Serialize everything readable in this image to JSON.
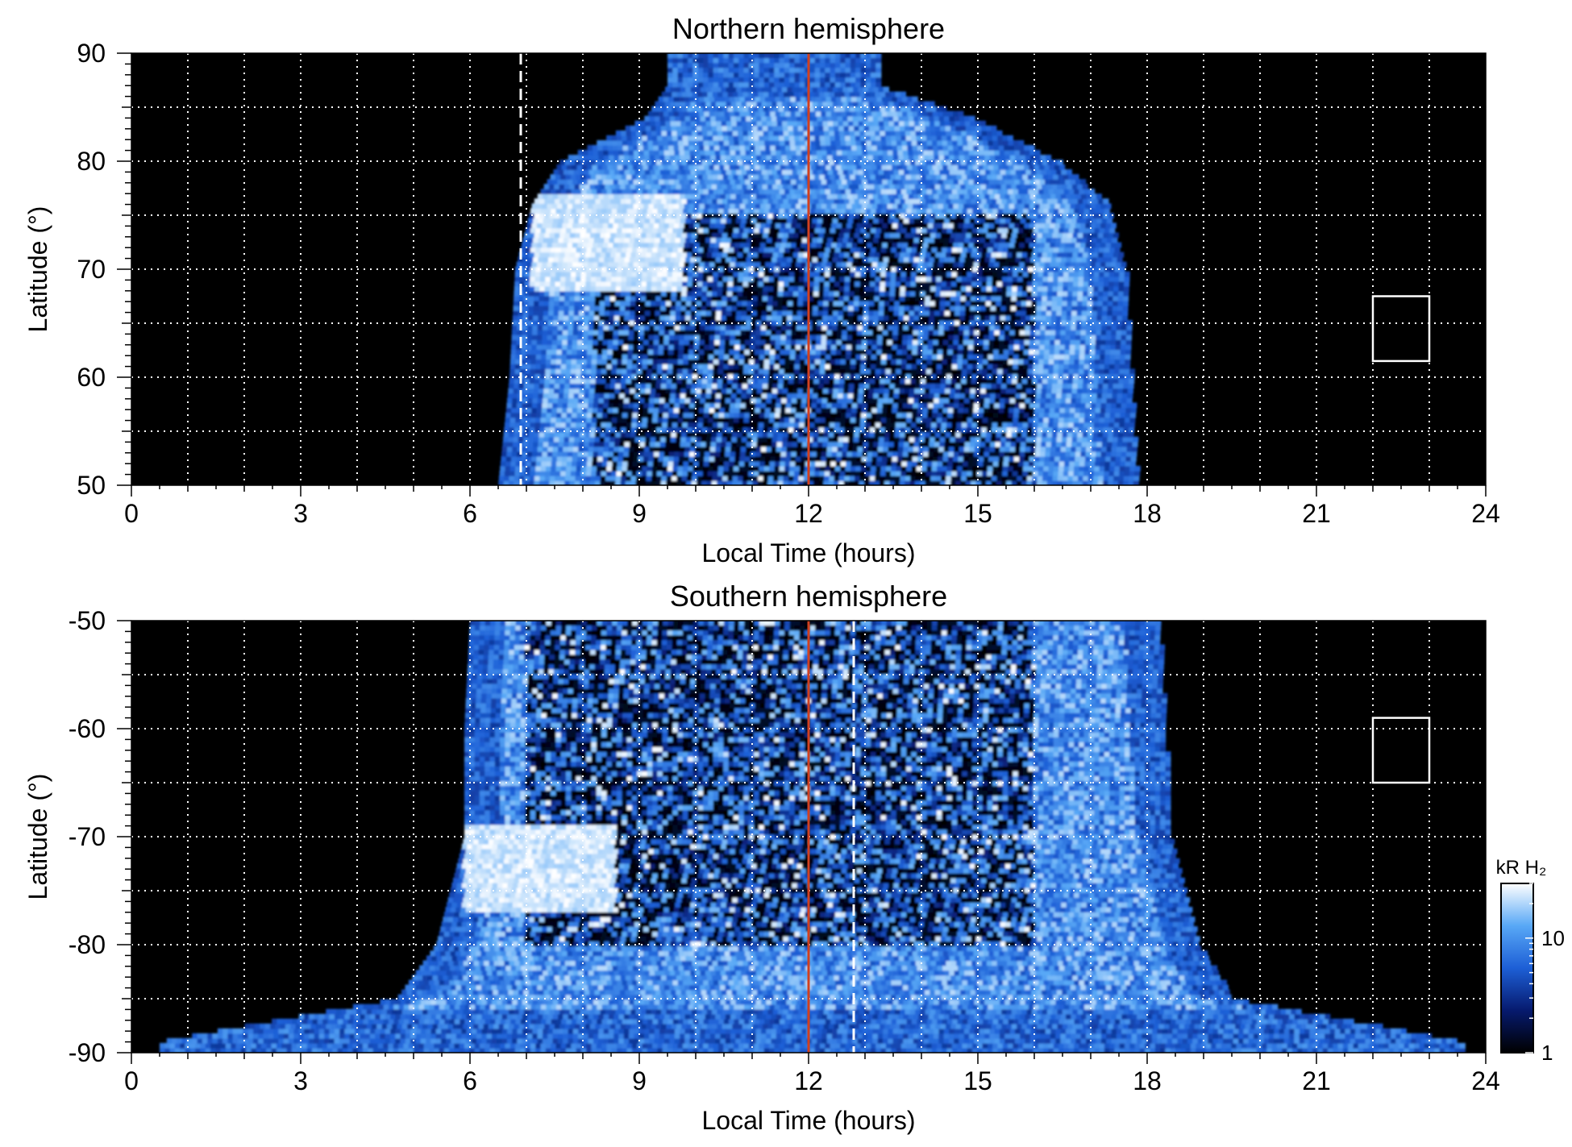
{
  "chart_data": [
    {
      "type": "heatmap",
      "title": "Northern hemisphere",
      "xlabel": "Local Time (hours)",
      "ylabel": "Latitude (°)",
      "xlim": [
        0,
        24
      ],
      "ylim": [
        50,
        90
      ],
      "x_ticks": [
        "0",
        "3",
        "6",
        "9",
        "12",
        "15",
        "18",
        "21",
        "24"
      ],
      "y_ticks": [
        "50",
        "60",
        "70",
        "80",
        "90"
      ],
      "grid": true,
      "grid_x_step_hours": 1,
      "grid_y_step_degrees": 5,
      "coverage": {
        "lt_start_at_lat": [
          [
            50,
            6.5
          ],
          [
            60,
            6.7
          ],
          [
            70,
            6.8
          ],
          [
            76,
            7.1
          ],
          [
            80,
            7.6
          ],
          [
            84,
            9.1
          ],
          [
            87,
            9.5
          ]
        ],
        "lt_end_at_lat": [
          [
            50,
            17.8
          ],
          [
            60,
            17.7
          ],
          [
            70,
            17.6
          ],
          [
            76,
            17.3
          ],
          [
            80,
            16.4
          ],
          [
            84,
            14.9
          ],
          [
            87,
            13.2
          ]
        ]
      },
      "bright_region": {
        "lt": [
          7.1,
          9.8
        ],
        "lat": [
          68,
          77
        ]
      },
      "dark_core": {
        "lt": [
          8.2,
          16.0
        ],
        "lat": [
          50,
          75
        ]
      },
      "reference_lines": [
        {
          "style": "dashed",
          "color": "#ffffff",
          "local_time": 6.9
        },
        {
          "style": "solid",
          "color": "#d04020",
          "local_time": 12.0
        }
      ],
      "reference_box": {
        "lt": [
          22,
          23
        ],
        "lat": [
          61.5,
          67.5
        ]
      }
    },
    {
      "type": "heatmap",
      "title": "Southern hemisphere",
      "xlabel": "Local Time (hours)",
      "ylabel": "Latitude (°)",
      "xlim": [
        0,
        24
      ],
      "ylim": [
        -90,
        -50
      ],
      "x_ticks": [
        "0",
        "3",
        "6",
        "9",
        "12",
        "15",
        "18",
        "21",
        "24"
      ],
      "y_ticks": [
        "-50",
        "-60",
        "-70",
        "-80",
        "-90"
      ],
      "grid": true,
      "grid_x_step_hours": 1,
      "grid_y_step_degrees": 5,
      "coverage": {
        "lt_start_at_lat": [
          [
            -50,
            6.0
          ],
          [
            -60,
            5.9
          ],
          [
            -70,
            5.9
          ],
          [
            -80,
            5.4
          ],
          [
            -85,
            4.7
          ],
          [
            -88,
            1.5
          ],
          [
            -89,
            0.5
          ]
        ],
        "lt_end_at_lat": [
          [
            -50,
            18.2
          ],
          [
            -60,
            18.3
          ],
          [
            -70,
            18.4
          ],
          [
            -80,
            18.9
          ],
          [
            -85,
            19.5
          ],
          [
            -88,
            22.6
          ],
          [
            -89,
            23.6
          ]
        ]
      },
      "bright_region": {
        "lt": [
          5.9,
          8.6
        ],
        "lat": [
          -77,
          -69
        ]
      },
      "dark_core": {
        "lt": [
          7.0,
          16.0
        ],
        "lat": [
          -80,
          -50
        ]
      },
      "reference_lines": [
        {
          "style": "dashed",
          "color": "#ffffff",
          "local_time": 12.8
        },
        {
          "style": "solid",
          "color": "#d04020",
          "local_time": 12.0
        }
      ],
      "reference_box": {
        "lt": [
          22,
          23
        ],
        "lat": [
          -65,
          -59
        ]
      }
    }
  ],
  "colorbar": {
    "label": "kR H₂",
    "scale": "log",
    "range": [
      1,
      30
    ],
    "tick_labels": [
      "1",
      "10"
    ],
    "colors": [
      "#000000",
      "#061a6e",
      "#1d5fd6",
      "#58a8f6",
      "#ffffff"
    ]
  }
}
